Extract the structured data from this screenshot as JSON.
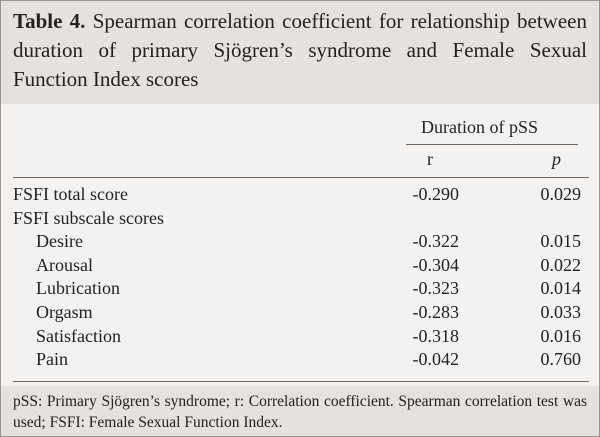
{
  "table": {
    "caption_label": "Table 4.",
    "caption": "Spearman correlation coefficient for relationship between duration of primary Sjögren’s syndrome and Female Sexual Function Index scores",
    "group_header": "Duration of pSS",
    "columns": [
      "r",
      "p"
    ],
    "rows": [
      {
        "label": "FSFI total score",
        "indent": false,
        "cells": [
          "-0.290",
          "0.029"
        ]
      },
      {
        "label": "FSFI subscale scores",
        "indent": false,
        "cells": null
      },
      {
        "label": "Desire",
        "indent": true,
        "cells": [
          "-0.322",
          "0.015"
        ]
      },
      {
        "label": "Arousal",
        "indent": true,
        "cells": [
          "-0.304",
          "0.022"
        ]
      },
      {
        "label": "Lubrication",
        "indent": true,
        "cells": [
          "-0.323",
          "0.014"
        ]
      },
      {
        "label": "Orgasm",
        "indent": true,
        "cells": [
          "-0.283",
          "0.033"
        ]
      },
      {
        "label": "Satisfaction",
        "indent": true,
        "cells": [
          "-0.318",
          "0.016"
        ]
      },
      {
        "label": "Pain",
        "indent": true,
        "cells": [
          "-0.042",
          "0.760"
        ]
      }
    ],
    "footnote": "pSS: Primary Sjögren’s syndrome; r: Correlation coefficient. Spearman correlation test was used; FSFI: Female Sexual Function Index."
  }
}
